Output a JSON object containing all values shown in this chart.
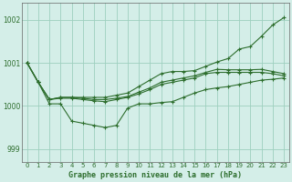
{
  "title": "Graphe pression niveau de la mer (hPa)",
  "bg_color": "#d4eee8",
  "grid_color": "#9ecfbf",
  "line_color": "#2d6e2d",
  "ylim": [
    998.7,
    1002.4
  ],
  "yticks": [
    999,
    1000,
    1001,
    1002
  ],
  "xlim": [
    -0.5,
    23.5
  ],
  "x_labels": [
    "0",
    "1",
    "2",
    "3",
    "4",
    "5",
    "6",
    "7",
    "8",
    "9",
    "10",
    "11",
    "12",
    "13",
    "14",
    "15",
    "16",
    "17",
    "18",
    "19",
    "20",
    "21",
    "22",
    "23"
  ],
  "series1": [
    1001.0,
    1000.55,
    1000.1,
    1000.2,
    1000.2,
    1000.15,
    1000.2,
    1000.2,
    1000.25,
    1000.3,
    1000.45,
    1000.55,
    1000.7,
    1000.75,
    1000.75,
    1000.8,
    1000.9,
    1001.0,
    1001.05,
    1001.3,
    1001.35,
    1001.6,
    1001.85,
    1002.05
  ],
  "series2": [
    1001.0,
    1000.55,
    1000.1,
    1000.15,
    1000.2,
    1000.15,
    1000.15,
    1000.15,
    1000.2,
    1000.25,
    1000.35,
    1000.45,
    1000.55,
    1000.6,
    1000.65,
    1000.7,
    1000.8,
    1000.85,
    1000.85,
    1000.85,
    1000.85,
    1000.85,
    1000.8,
    1000.75
  ],
  "series3": [
    1001.0,
    1000.55,
    1000.1,
    1000.15,
    1000.2,
    1000.15,
    1000.1,
    1000.1,
    1000.15,
    1000.2,
    1000.3,
    1000.4,
    1000.5,
    1000.55,
    1000.6,
    1000.65,
    1000.75,
    1000.8,
    1000.8,
    1000.8,
    1000.8,
    1000.8,
    1000.75,
    1000.7
  ],
  "series4": [
    1001.0,
    1000.55,
    1000.05,
    1000.05,
    999.65,
    999.6,
    999.55,
    999.5,
    999.55,
    999.95,
    1000.05,
    1000.05,
    1000.05,
    1000.1,
    1000.2,
    1000.3,
    1000.4,
    1000.42,
    1000.45,
    1000.5,
    1000.55,
    1000.6,
    1000.62,
    1000.65
  ]
}
